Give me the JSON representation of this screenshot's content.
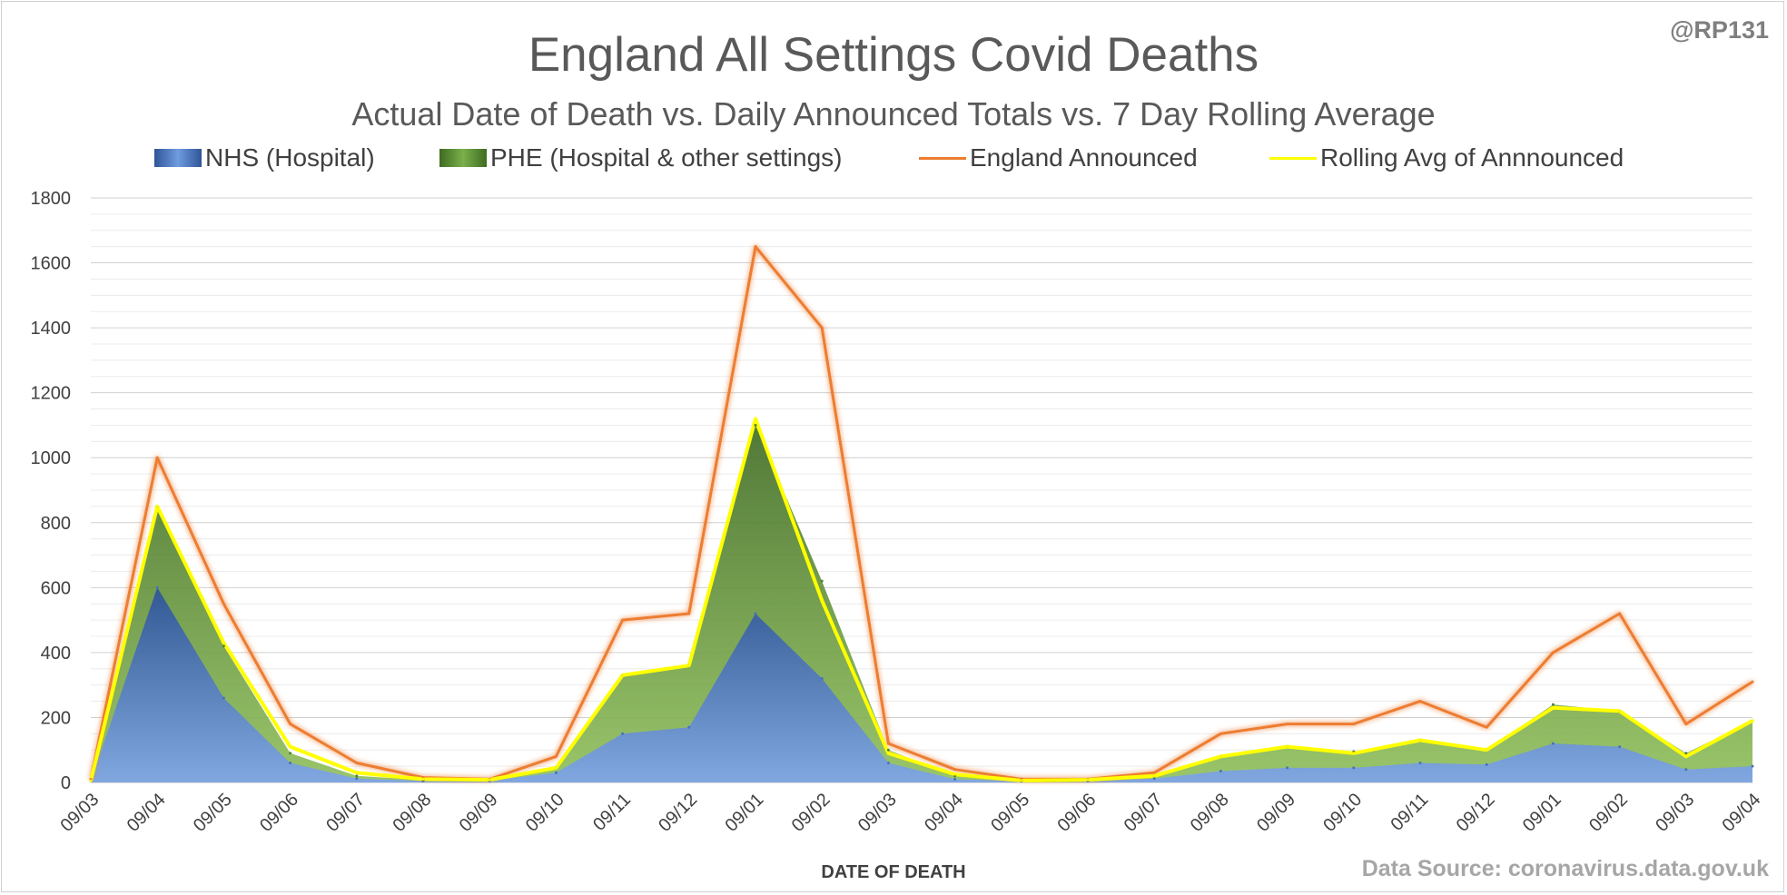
{
  "chart_data": {
    "type": "area",
    "title": "England All Settings Covid Deaths",
    "subtitle": "Actual Date of Death vs. Daily Announced Totals vs. 7 Day Rolling Average",
    "xlabel": "DATE OF DEATH",
    "ylabel": "",
    "ylim": [
      0,
      1800
    ],
    "yticks": [
      0,
      200,
      400,
      600,
      800,
      1000,
      1200,
      1400,
      1600,
      1800
    ],
    "grid": true,
    "legend_position": "top",
    "x_tick_labels": [
      "09/03",
      "09/04",
      "09/05",
      "09/06",
      "09/07",
      "09/08",
      "09/09",
      "09/10",
      "09/11",
      "09/12",
      "09/01",
      "09/02",
      "09/03",
      "09/04",
      "09/05",
      "09/06",
      "09/07",
      "09/08",
      "09/09",
      "09/10",
      "09/11",
      "09/12",
      "09/01",
      "09/02",
      "09/03",
      "09/04"
    ],
    "x": [
      "09/03",
      "09/04",
      "09/05",
      "09/06",
      "09/07",
      "09/08",
      "09/09",
      "09/10",
      "09/11",
      "09/12",
      "09/01",
      "09/02",
      "09/03",
      "09/04",
      "09/05",
      "09/06",
      "09/07",
      "09/08",
      "09/09",
      "09/10",
      "09/11",
      "09/12",
      "09/01",
      "09/02",
      "09/03",
      "09/04"
    ],
    "series": [
      {
        "name": "NHS (Hospital)",
        "kind": "area",
        "color": "#4472c4",
        "values": [
          5,
          600,
          260,
          60,
          12,
          5,
          5,
          30,
          150,
          170,
          520,
          320,
          60,
          10,
          4,
          5,
          12,
          35,
          45,
          45,
          60,
          55,
          120,
          110,
          40,
          50
        ]
      },
      {
        "name": "PHE (Hospital & other settings)",
        "kind": "area",
        "color": "#548235",
        "values": [
          8,
          850,
          420,
          90,
          20,
          8,
          8,
          45,
          330,
          360,
          1100,
          620,
          100,
          20,
          6,
          8,
          20,
          80,
          110,
          95,
          130,
          100,
          240,
          220,
          90,
          190
        ]
      },
      {
        "name": "England Announced",
        "kind": "line",
        "color": "#ed7d31",
        "values": [
          10,
          1000,
          550,
          180,
          60,
          15,
          10,
          80,
          500,
          520,
          1650,
          1400,
          120,
          40,
          10,
          10,
          30,
          150,
          180,
          180,
          250,
          170,
          400,
          520,
          180,
          310
        ]
      },
      {
        "name": "Rolling Avg of Annnounced",
        "kind": "line",
        "color": "#ffff00",
        "values": [
          5,
          850,
          430,
          110,
          30,
          10,
          8,
          45,
          330,
          360,
          1120,
          560,
          90,
          25,
          6,
          8,
          20,
          80,
          110,
          90,
          130,
          100,
          230,
          220,
          80,
          190
        ]
      }
    ]
  },
  "handle": "@RP131",
  "source": "Data Source: coronavirus.data.gov.uk",
  "colors": {
    "nhs": "#4472c4",
    "phe": "#548235",
    "announced": "#ed7d31",
    "rolling": "#ffff00",
    "grid": "#d9d9d9",
    "text": "#595959"
  }
}
